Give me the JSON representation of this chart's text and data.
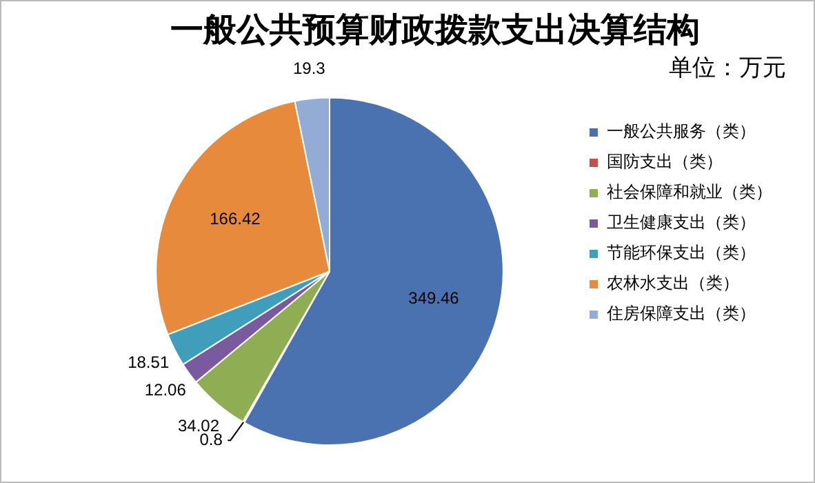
{
  "chart_data": {
    "type": "pie",
    "title": "一般公共预算财政拨款支出决算结构",
    "subtitle": "单位：万元",
    "categories": [
      "一般公共服务（类）",
      "国防支出（类）",
      "社会保障和就业（类）",
      "卫生健康支出（类）",
      "节能环保支出（类）",
      "农林水支出（类）",
      "住房保障支出（类）"
    ],
    "values": [
      349.46,
      0.8,
      34.02,
      12.06,
      18.51,
      166.42,
      19.3
    ],
    "colors": [
      "#4a72b0",
      "#c0504d",
      "#8fae53",
      "#7a5a9e",
      "#3f9fba",
      "#e88a3c",
      "#93acd5"
    ],
    "data_labels": true,
    "legend": "right"
  }
}
